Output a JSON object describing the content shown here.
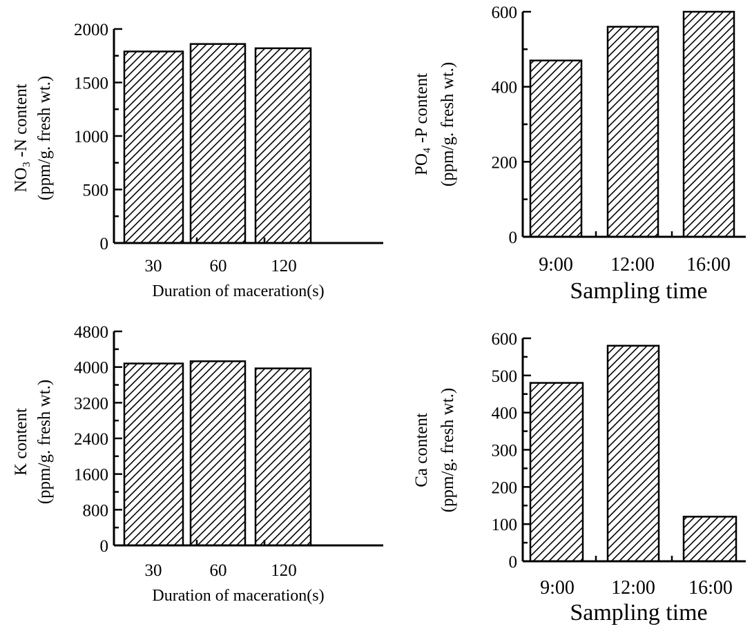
{
  "chart_data": [
    {
      "type": "bar",
      "categories": [
        "30",
        "60",
        "120"
      ],
      "values": [
        1790,
        1860,
        1820
      ],
      "ylim": [
        0,
        2000
      ],
      "yticks": [
        0,
        500,
        1000,
        1500,
        2000
      ],
      "xlabel": "Duration of maceration(s)",
      "ylabel_line1": "NO₃ -N content",
      "ylabel_line2": "(ppm/g. fresh wt.)"
    },
    {
      "type": "bar",
      "categories": [
        "9:00",
        "12:00",
        "16:00"
      ],
      "values": [
        470,
        560,
        600
      ],
      "ylim": [
        0,
        600
      ],
      "yticks": [
        0,
        200,
        400,
        600
      ],
      "xlabel": "Sampling time",
      "ylabel_line1": "PO₄ -P content",
      "ylabel_line2": "(ppm/g. fresh wt.)"
    },
    {
      "type": "bar",
      "categories": [
        "30",
        "60",
        "120"
      ],
      "values": [
        4080,
        4130,
        3970
      ],
      "ylim": [
        0,
        4800
      ],
      "yticks": [
        0,
        800,
        1600,
        2400,
        3200,
        4000,
        4800
      ],
      "xlabel": "Duration of maceration(s)",
      "ylabel_line1": "K content",
      "ylabel_line2": "(ppm/g. fresh wt.)"
    },
    {
      "type": "bar",
      "categories": [
        "9:00",
        "12:00",
        "16:00"
      ],
      "values": [
        480,
        580,
        120
      ],
      "ylim": [
        0,
        600
      ],
      "yticks": [
        0,
        100,
        200,
        300,
        400,
        500,
        600
      ],
      "xlabel": "Sampling time",
      "ylabel_line1": "Ca content",
      "ylabel_line2": "(ppm/g. fresh wt.)"
    }
  ]
}
